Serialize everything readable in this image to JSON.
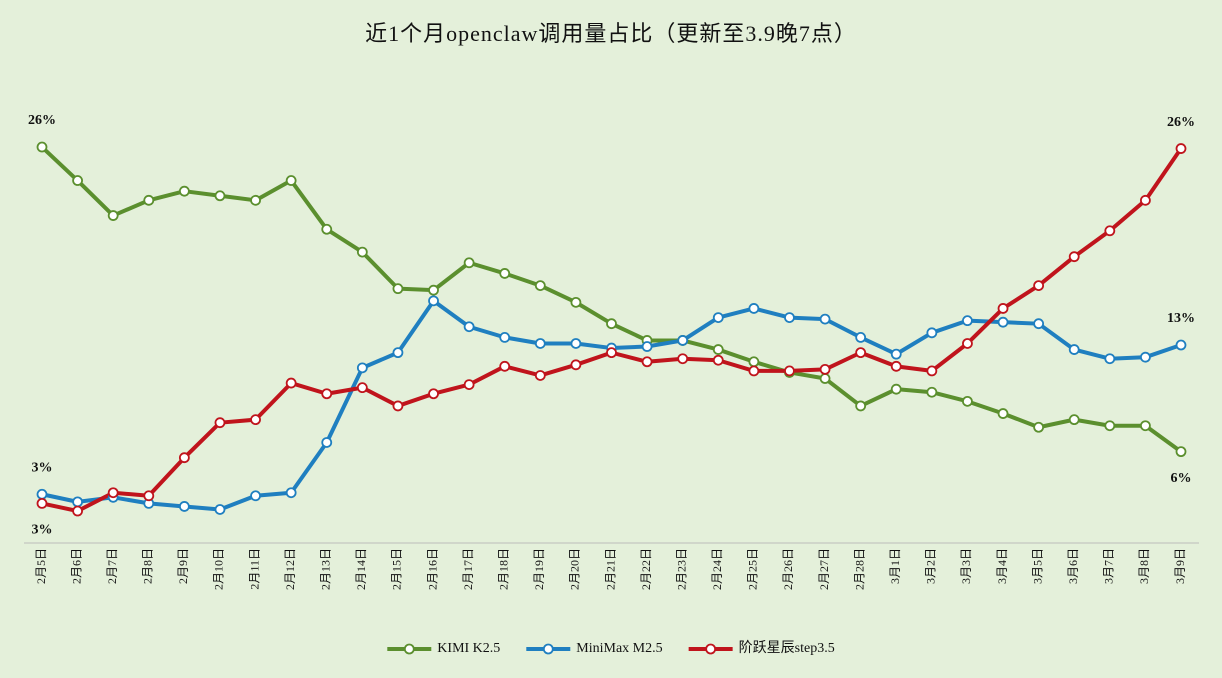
{
  "chart_data": {
    "type": "line",
    "title": "近1个月openclaw调用量占比（更新至3.9晚7点）",
    "categories": [
      "2月5日",
      "2月6日",
      "2月7日",
      "2月8日",
      "2月9日",
      "2月10日",
      "2月11日",
      "2月12日",
      "2月13日",
      "2月14日",
      "2月15日",
      "2月16日",
      "2月17日",
      "2月18日",
      "2月19日",
      "2月20日",
      "2月21日",
      "2月22日",
      "2月23日",
      "2月24日",
      "2月25日",
      "2月26日",
      "2月27日",
      "2月28日",
      "3月1日",
      "3月2日",
      "3月3日",
      "3月4日",
      "3月5日",
      "3月6日",
      "3月7日",
      "3月8日",
      "3月9日"
    ],
    "ylim": [
      0,
      30
    ],
    "series": [
      {
        "name": "KIMI K2.5",
        "color": "#5b8f2e",
        "values": [
          26.0,
          23.8,
          21.5,
          22.5,
          23.1,
          22.8,
          22.5,
          23.8,
          20.6,
          19.1,
          16.7,
          16.6,
          18.4,
          17.7,
          16.9,
          15.8,
          14.4,
          13.3,
          13.3,
          12.7,
          11.9,
          11.2,
          10.8,
          9.0,
          10.1,
          9.9,
          9.3,
          8.5,
          7.6,
          8.1,
          7.7,
          7.7,
          6.0
        ],
        "value_labels": [
          "26%",
          null,
          null,
          null,
          null,
          null,
          null,
          null,
          null,
          null,
          null,
          null,
          null,
          null,
          null,
          null,
          null,
          null,
          null,
          null,
          null,
          null,
          null,
          null,
          null,
          null,
          null,
          null,
          null,
          null,
          null,
          null,
          "6%"
        ]
      },
      {
        "name": "MiniMax M2.5",
        "color": "#1f7fc0",
        "values": [
          3.2,
          2.7,
          3.0,
          2.6,
          2.4,
          2.2,
          3.1,
          3.3,
          6.6,
          11.5,
          12.5,
          15.9,
          14.2,
          13.5,
          13.1,
          13.1,
          12.8,
          12.9,
          13.3,
          14.8,
          15.4,
          14.8,
          14.7,
          13.5,
          12.4,
          13.8,
          14.6,
          14.5,
          14.4,
          12.7,
          12.1,
          12.2,
          13.0
        ],
        "value_labels": [
          "3%",
          null,
          null,
          null,
          null,
          null,
          null,
          null,
          null,
          null,
          null,
          null,
          null,
          null,
          null,
          null,
          null,
          null,
          null,
          null,
          null,
          null,
          null,
          null,
          null,
          null,
          null,
          null,
          null,
          null,
          null,
          null,
          "13%"
        ]
      },
      {
        "name": "阶跃星辰step3.5",
        "color": "#c0141c",
        "values": [
          2.6,
          2.1,
          3.3,
          3.1,
          5.6,
          7.9,
          8.1,
          10.5,
          9.8,
          10.2,
          9.0,
          9.8,
          10.4,
          11.6,
          11.0,
          11.7,
          12.5,
          11.9,
          12.1,
          12.0,
          11.3,
          11.3,
          11.4,
          12.5,
          11.6,
          11.3,
          13.1,
          15.4,
          16.9,
          18.8,
          20.5,
          22.5,
          25.9
        ],
        "value_labels": [
          "3%",
          null,
          null,
          null,
          null,
          null,
          null,
          null,
          null,
          null,
          null,
          null,
          null,
          null,
          null,
          null,
          null,
          null,
          null,
          null,
          null,
          null,
          null,
          null,
          null,
          null,
          null,
          null,
          null,
          null,
          null,
          null,
          "26%"
        ]
      }
    ]
  }
}
